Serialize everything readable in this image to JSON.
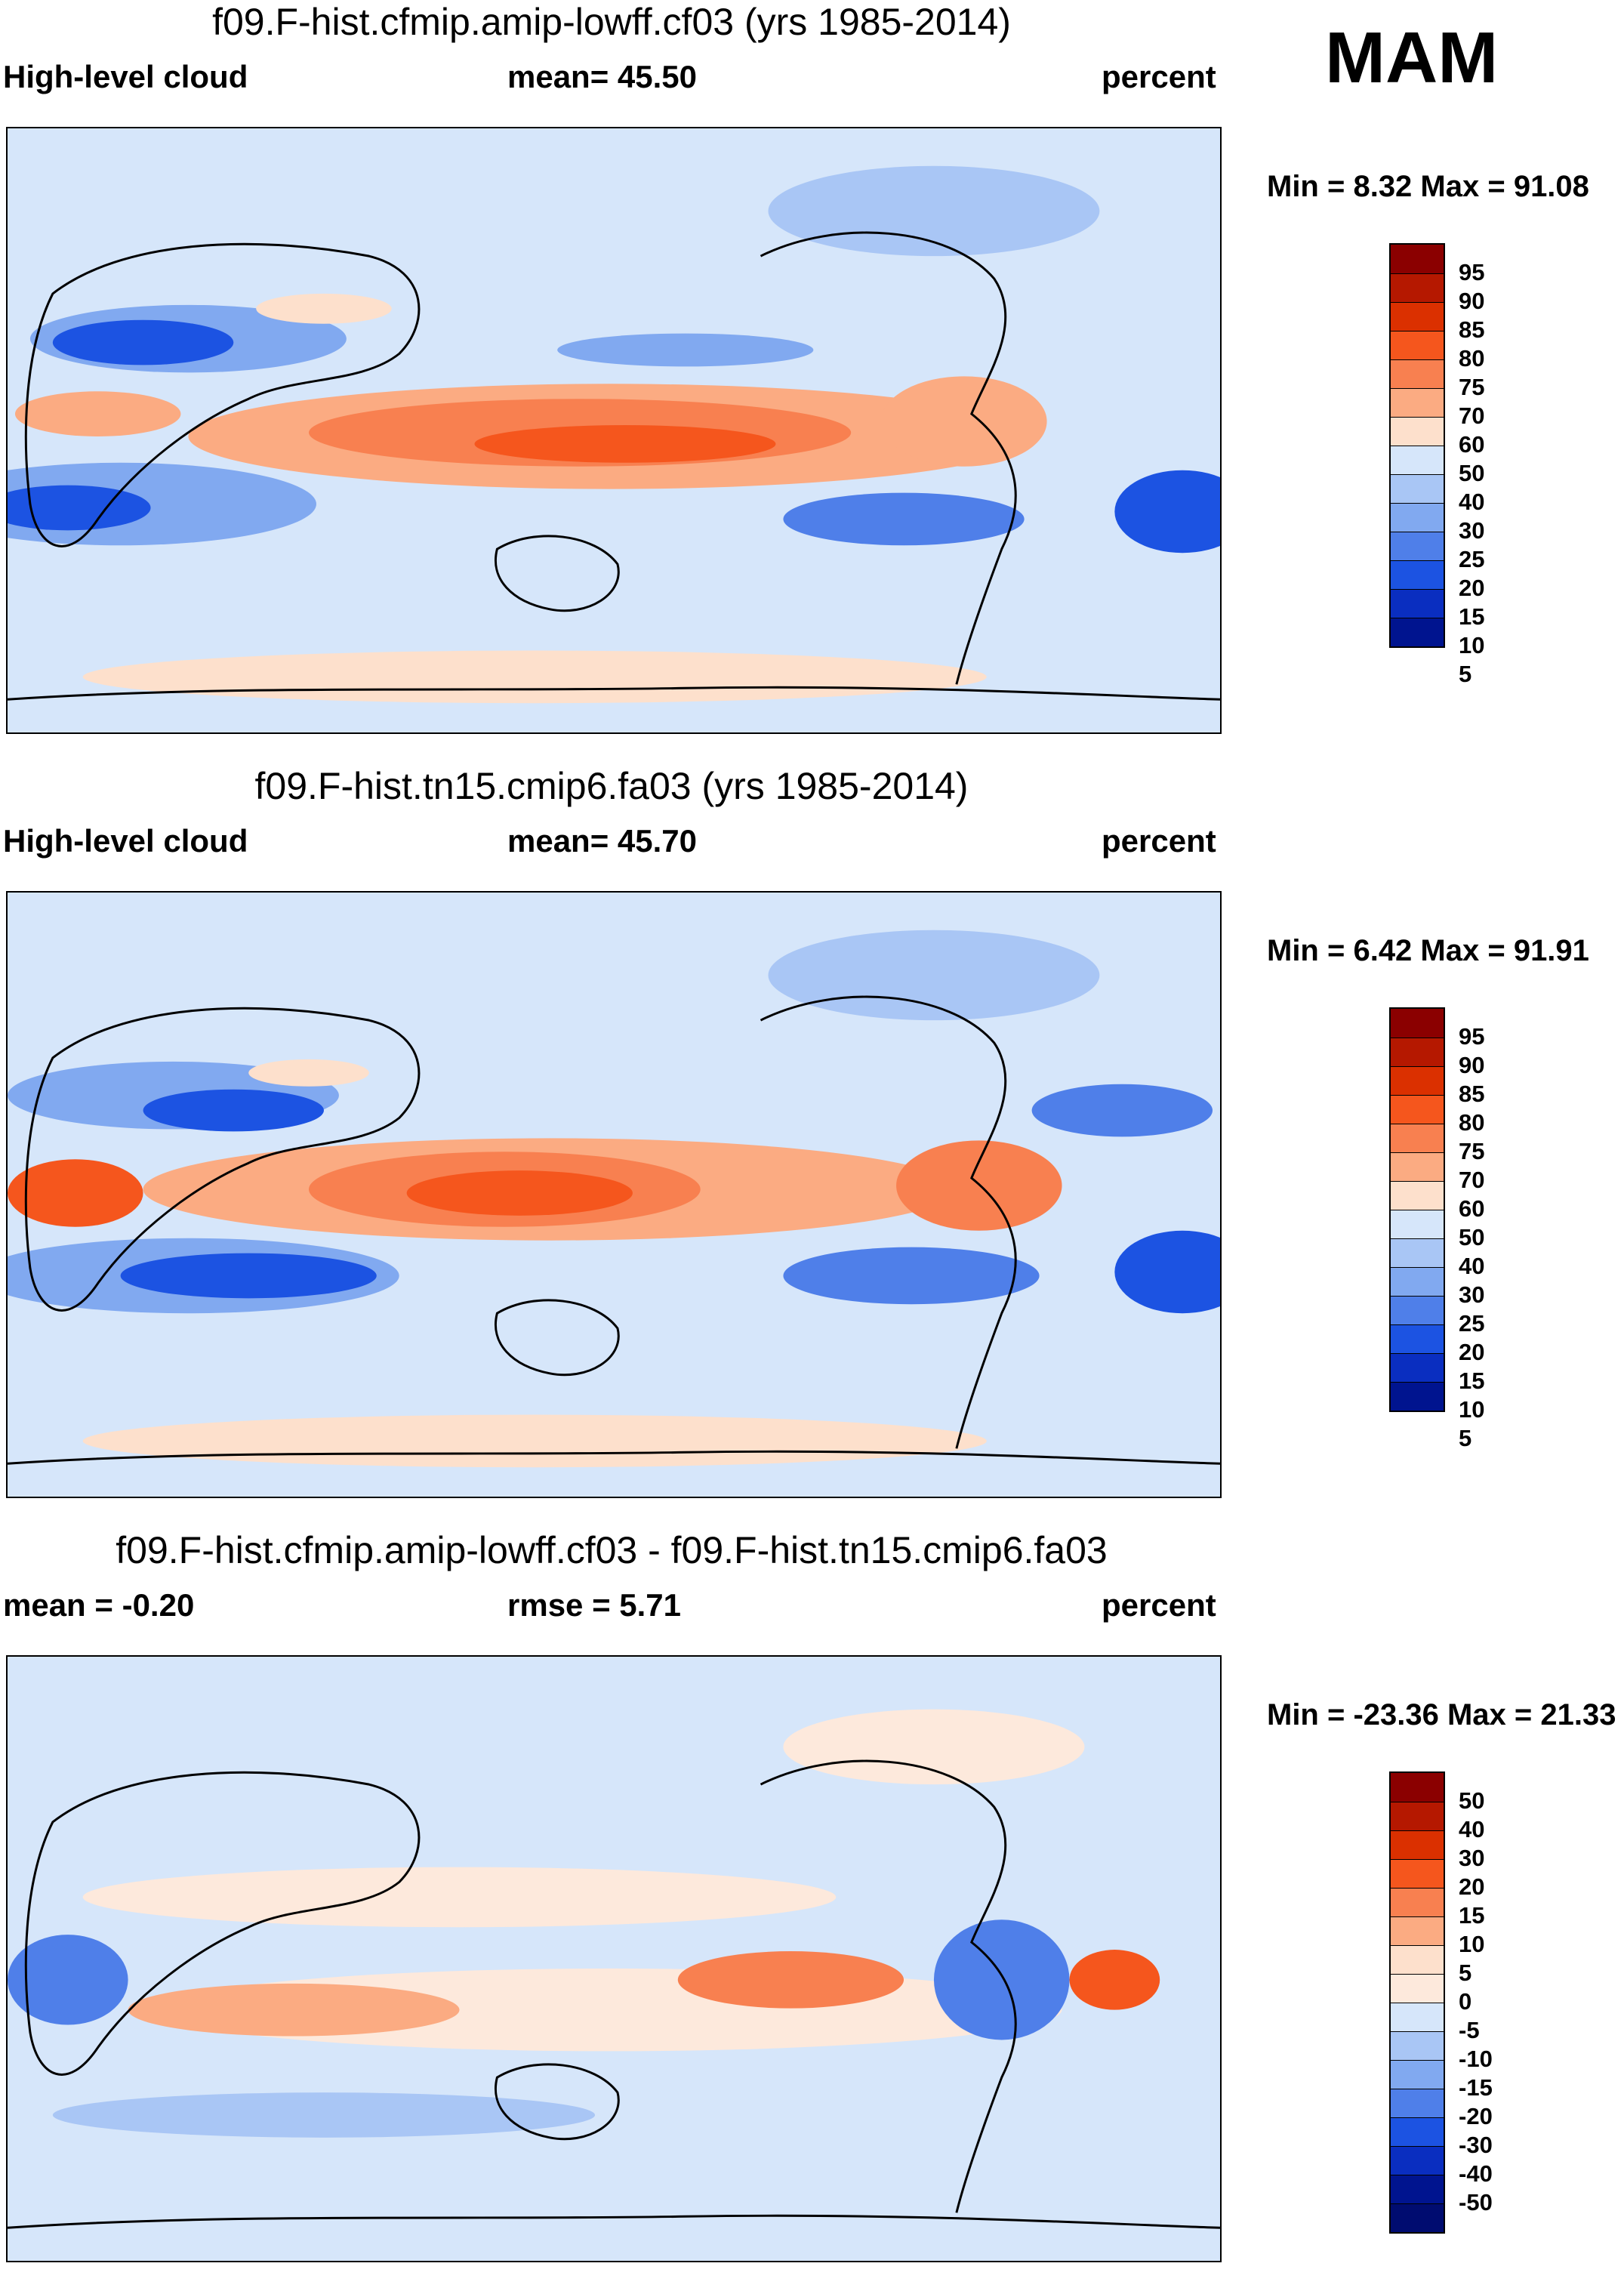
{
  "season": "MAM",
  "panels": [
    {
      "title": "f09.F-hist.cfmip.amip-lowff.cf03 (yrs 1985-2014)",
      "left_label": "High-level cloud",
      "mid_label": "mean=  45.50",
      "right_label": "percent",
      "minmax": "Min =   8.32 Max =  91.08",
      "colorbar": {
        "colors": [
          "#8b0000",
          "#b51800",
          "#db3000",
          "#f5561d",
          "#f88050",
          "#fbab82",
          "#fde0cc",
          "#d6e6fa",
          "#a9c6f5",
          "#81a9f0",
          "#4f7fe9",
          "#1c53e2",
          "#0a2ec0",
          "#00148f"
        ],
        "ticks": [
          "95",
          "90",
          "85",
          "80",
          "75",
          "70",
          "60",
          "50",
          "40",
          "30",
          "25",
          "20",
          "15",
          "10",
          "5"
        ]
      }
    },
    {
      "title": "f09.F-hist.tn15.cmip6.fa03 (yrs 1985-2014)",
      "left_label": "High-level cloud",
      "mid_label": "mean=  45.70",
      "right_label": "percent",
      "minmax": "Min =   6.42 Max =  91.91",
      "colorbar": {
        "colors": [
          "#8b0000",
          "#b51800",
          "#db3000",
          "#f5561d",
          "#f88050",
          "#fbab82",
          "#fde0cc",
          "#d6e6fa",
          "#a9c6f5",
          "#81a9f0",
          "#4f7fe9",
          "#1c53e2",
          "#0a2ec0",
          "#00148f"
        ],
        "ticks": [
          "95",
          "90",
          "85",
          "80",
          "75",
          "70",
          "60",
          "50",
          "40",
          "30",
          "25",
          "20",
          "15",
          "10",
          "5"
        ]
      }
    },
    {
      "title": "f09.F-hist.cfmip.amip-lowff.cf03 - f09.F-hist.tn15.cmip6.fa03",
      "left_label": "mean =  -0.20",
      "mid_label": "rmse =    5.71",
      "right_label": "percent",
      "minmax": "Min = -23.36 Max =  21.33",
      "colorbar": {
        "colors": [
          "#8b0000",
          "#b51800",
          "#db3000",
          "#f5561d",
          "#f88050",
          "#fbab82",
          "#fde0cc",
          "#fde9dc",
          "#d6e6fa",
          "#a9c6f5",
          "#81a9f0",
          "#4f7fe9",
          "#1c53e2",
          "#0a2ec0",
          "#00148f",
          "#000c70"
        ],
        "ticks": [
          "50",
          "40",
          "30",
          "20",
          "15",
          "10",
          "5",
          "0",
          "-5",
          "-10",
          "-15",
          "-20",
          "-30",
          "-40",
          "-50"
        ]
      }
    }
  ]
}
